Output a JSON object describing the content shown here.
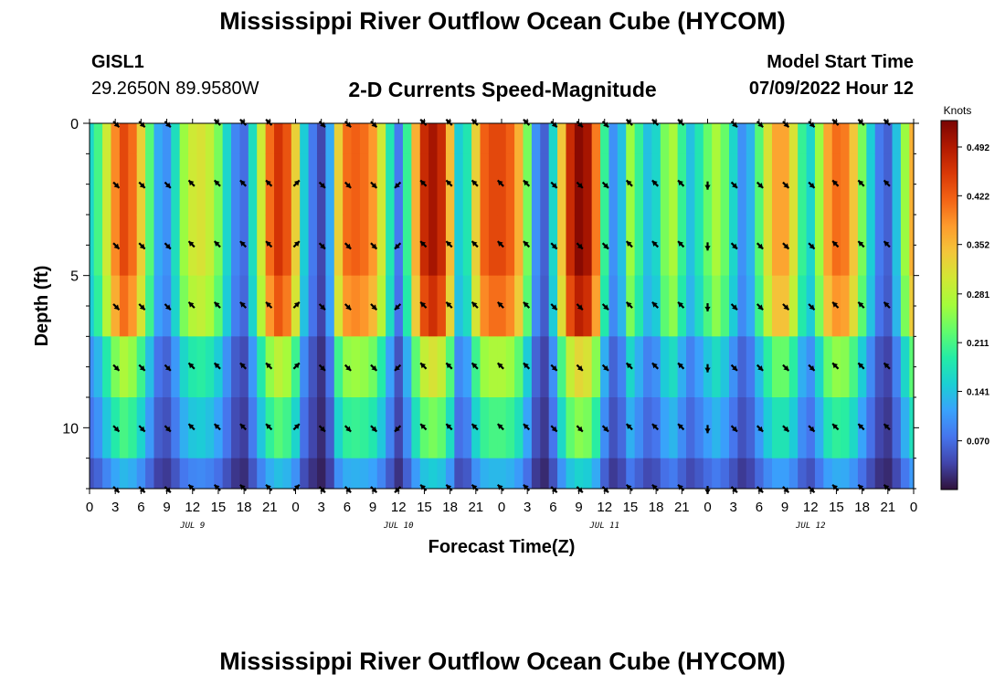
{
  "header": {
    "title": "Mississippi River Outflow Ocean Cube (HYCOM)",
    "station_id": "GISL1",
    "station_coords": "29.2650N  89.9580W",
    "subtitle": "2-D Currents Speed-Magnitude",
    "model_start_label": "Model Start Time",
    "model_start_value": "07/09/2022 Hour 12"
  },
  "footer": {
    "title_repeat": "Mississippi River Outflow Ocean Cube (HYCOM)"
  },
  "chart_data": {
    "type": "heatmap",
    "xlabel": "Forecast Time(Z)",
    "ylabel": "Depth (ft)",
    "x_hours": [
      0,
      3,
      6,
      9,
      12,
      15,
      18,
      21,
      24,
      27,
      30,
      33,
      36,
      39,
      42,
      45,
      48,
      51,
      54,
      57,
      60,
      63,
      66,
      69,
      72,
      75,
      78,
      81,
      84,
      87,
      90,
      93,
      96
    ],
    "x_tick_labels": [
      "0",
      "3",
      "6",
      "9",
      "12",
      "15",
      "18",
      "21",
      "0",
      "3",
      "6",
      "9",
      "12",
      "15",
      "18",
      "21",
      "0",
      "3",
      "6",
      "9",
      "12",
      "15",
      "18",
      "21",
      "0",
      "3",
      "6",
      "9",
      "12",
      "15",
      "18",
      "21",
      "0"
    ],
    "day_labels": [
      {
        "label": "JUL 9",
        "hour": 12
      },
      {
        "label": "JUL 10",
        "hour": 36
      },
      {
        "label": "JUL 11",
        "hour": 60
      },
      {
        "label": "JUL 12",
        "hour": 84
      }
    ],
    "ylim": [
      0,
      12
    ],
    "y_tick_labels": [
      "0",
      "5",
      "10"
    ],
    "y_ticks": [
      0,
      5,
      10
    ],
    "depth_levels": [
      0,
      2,
      4,
      6,
      8,
      10,
      12
    ],
    "colorbar": {
      "unit": "Knots",
      "min": 0.0,
      "max": 0.53,
      "tick_labels": [
        "0.070",
        "0.141",
        "0.211",
        "0.281",
        "0.352",
        "0.422",
        "0.492"
      ],
      "tick_values": [
        0.07,
        0.141,
        0.211,
        0.281,
        0.352,
        0.422,
        0.492
      ],
      "colormap": [
        "#30123b",
        "#4145ab",
        "#4675ed",
        "#39a2fc",
        "#1bcfd4",
        "#24eca6",
        "#61fc6c",
        "#a4fc3b",
        "#d1e834",
        "#f3c63a",
        "#fe9b2d",
        "#f36315",
        "#d93806",
        "#b11901",
        "#7a0403"
      ]
    },
    "speed_profile": {
      "hours": [
        0,
        1,
        2,
        3,
        4,
        5,
        6,
        7,
        8,
        9,
        10,
        11,
        12,
        13,
        14,
        15,
        16,
        17,
        18,
        19,
        20,
        21,
        22,
        23,
        24,
        25,
        26,
        27,
        28,
        29,
        30,
        31,
        32,
        33,
        34,
        35,
        36,
        37,
        38,
        39,
        40,
        41,
        42,
        43,
        44,
        45,
        46,
        47,
        48,
        49,
        50,
        51,
        52,
        53,
        54,
        55,
        56,
        57,
        58,
        59,
        60,
        61,
        62,
        63,
        64,
        65,
        66,
        67,
        68,
        69,
        70,
        71,
        72,
        73,
        74,
        75,
        76,
        77,
        78,
        79,
        80,
        81,
        82,
        83,
        84,
        85,
        86,
        87,
        88,
        89,
        90,
        91,
        92,
        93,
        94,
        95,
        96
      ],
      "surface_speed": [
        0.16,
        0.21,
        0.3,
        0.39,
        0.44,
        0.41,
        0.33,
        0.22,
        0.12,
        0.1,
        0.17,
        0.26,
        0.3,
        0.31,
        0.29,
        0.24,
        0.16,
        0.09,
        0.07,
        0.17,
        0.3,
        0.41,
        0.46,
        0.43,
        0.33,
        0.15,
        0.08,
        0.04,
        0.12,
        0.33,
        0.41,
        0.42,
        0.41,
        0.38,
        0.3,
        0.18,
        0.08,
        0.2,
        0.36,
        0.47,
        0.5,
        0.47,
        0.35,
        0.15,
        0.18,
        0.33,
        0.42,
        0.44,
        0.44,
        0.42,
        0.36,
        0.24,
        0.1,
        0.06,
        0.16,
        0.34,
        0.47,
        0.52,
        0.5,
        0.4,
        0.2,
        0.1,
        0.14,
        0.26,
        0.2,
        0.14,
        0.16,
        0.24,
        0.27,
        0.2,
        0.14,
        0.18,
        0.23,
        0.27,
        0.23,
        0.16,
        0.1,
        0.13,
        0.22,
        0.31,
        0.37,
        0.37,
        0.31,
        0.2,
        0.16,
        0.26,
        0.37,
        0.41,
        0.4,
        0.34,
        0.24,
        0.15,
        0.08,
        0.06,
        0.14,
        0.26,
        0.36
      ],
      "depth_factor": [
        1.0,
        1.0,
        1.0,
        0.93,
        0.62,
        0.48,
        0.3
      ]
    },
    "arrow_direction_by_hour": {
      "hours": [
        0,
        3,
        6,
        9,
        12,
        15,
        18,
        21,
        24,
        27,
        30,
        33,
        36,
        39,
        42,
        45,
        48,
        51,
        54,
        57,
        60,
        63,
        66,
        69,
        72,
        75,
        78,
        81,
        84,
        87,
        90,
        93,
        96
      ],
      "direction": [
        "se",
        "se",
        "se",
        "se",
        "nw",
        "nw",
        "nw",
        "nw",
        "ne",
        "se",
        "se",
        "se",
        "sw",
        "nw",
        "nw",
        "nw",
        "nw",
        "nw",
        "se",
        "se",
        "se",
        "nw",
        "nw",
        "nw",
        "s",
        "se",
        "se",
        "se",
        "se",
        "nw",
        "nw",
        "nw",
        "nw"
      ]
    }
  }
}
